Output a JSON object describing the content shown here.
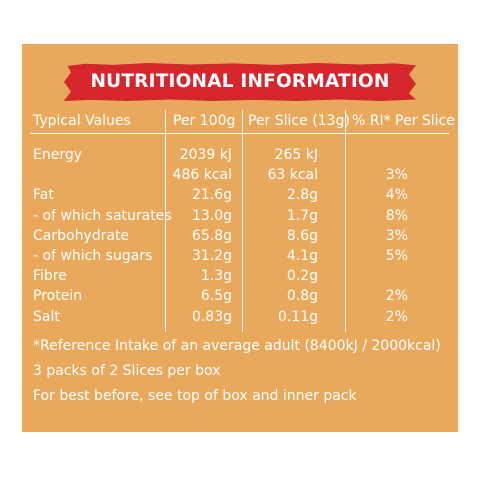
{
  "title": "NUTRITIONAL INFORMATION",
  "headers": {
    "typical": "Typical Values",
    "per100": "Per 100g",
    "perslice": "Per Slice (13g)",
    "ri": "% RI* Per Slice"
  },
  "rows": [
    {
      "label": "Energy",
      "per100": "2039 kJ",
      "perslice": "265 kJ",
      "ri": ""
    },
    {
      "label": "",
      "per100": "486 kcal",
      "perslice": "63 kcal",
      "ri": "3%"
    },
    {
      "label": "Fat",
      "per100": "21.6g",
      "perslice": "2.8g",
      "ri": "4%"
    },
    {
      "label": "- of which saturates",
      "per100": "13.0g",
      "perslice": "1.7g",
      "ri": "8%"
    },
    {
      "label": "Carbohydrate",
      "per100": "65.8g",
      "perslice": "8.6g",
      "ri": "3%"
    },
    {
      "label": "- of which sugars",
      "per100": "31.2g",
      "perslice": "4.1g",
      "ri": "5%"
    },
    {
      "label": "Fibre",
      "per100": "1.3g",
      "perslice": "0.2g",
      "ri": ""
    },
    {
      "label": "Protein",
      "per100": "6.5g",
      "perslice": "0.8g",
      "ri": "2%"
    },
    {
      "label": "Salt",
      "per100": "0.83g",
      "perslice": "0.11g",
      "ri": "2%"
    }
  ],
  "notes": {
    "reference": "*Reference Intake of an average adult (8400kJ / 2000kcal)",
    "packs": "3 packs of 2 Slices per box",
    "best_before": "For best before, see top of box and inner pack"
  },
  "colors": {
    "panel": "#e8a95d",
    "banner": "#d4262c",
    "text": "#ffffff"
  }
}
